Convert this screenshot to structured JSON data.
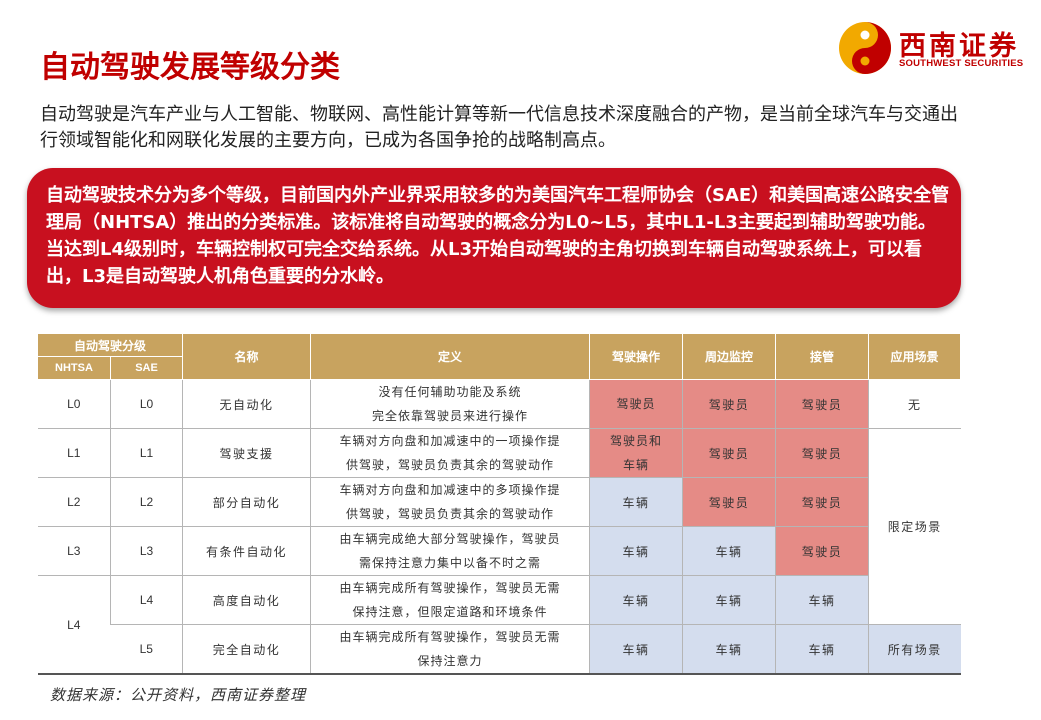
{
  "page": {
    "title": "自动驾驶发展等级分类",
    "intro": "自动驾驶是汽车产业与人工智能、物联网、高性能计算等新一代信息技术深度融合的产物，是当前全球汽车与交通出行领域智能化和网联化发展的主要方向，已成为各国争抢的战略制高点。",
    "callout": "自动驾驶技术分为多个等级，目前国内外产业界采用较多的为美国汽车工程师协会（SAE）和美国高速公路安全管理局（NHTSA）推出的分类标准。该标准将自动驾驶的概念分为L0~L5，其中L1-L3主要起到辅助驾驶功能。当达到L4级别时，车辆控制权可完全交给系统。从L3开始自动驾驶的主角切换到车辆自动驾驶系统上，可以看出，L3是自动驾驶人机角色重要的分水岭。",
    "source": "数据来源：公开资料，西南证券整理"
  },
  "logo": {
    "name_cn": "西南证券",
    "name_en": "SOUTHWEST SECURITIES",
    "colors": {
      "red": "#c00000",
      "gold": "#f2a900"
    }
  },
  "table": {
    "headers": {
      "grade": "自动驾驶分级",
      "nhtsa": "NHTSA",
      "sae": "SAE",
      "name": "名称",
      "definition": "定义",
      "operation": "驾驶操作",
      "monitoring": "周边监控",
      "takeover": "接管",
      "scenario": "应用场景"
    },
    "rows": [
      {
        "nhtsa": "L0",
        "sae": "L0",
        "name": "无自动化",
        "def_line1": "没有任何辅助功能及系统",
        "def_line2": "完全依靠驾驶员来进行操作",
        "operation_line1": "驾驶员",
        "operation_line2": "",
        "monitoring": "驾驶员",
        "takeover": "驾驶员",
        "scenario": "无"
      },
      {
        "nhtsa": "L1",
        "sae": "L1",
        "name": "驾驶支援",
        "def_line1": "车辆对方向盘和加减速中的一项操作提",
        "def_line2": "供驾驶，驾驶员负责其余的驾驶动作",
        "operation_line1": "驾驶员和",
        "operation_line2": "车辆",
        "monitoring": "驾驶员",
        "takeover": "驾驶员",
        "scenario": ""
      },
      {
        "nhtsa": "L2",
        "sae": "L2",
        "name": "部分自动化",
        "def_line1": "车辆对方向盘和加减速中的多项操作提",
        "def_line2": "供驾驶，驾驶员负责其余的驾驶动作",
        "operation_line1": "车辆",
        "operation_line2": "",
        "monitoring": "驾驶员",
        "takeover": "驾驶员",
        "scenario": "限定场景"
      },
      {
        "nhtsa": "L3",
        "sae": "L3",
        "name": "有条件自动化",
        "def_line1": "由车辆完成绝大部分驾驶操作，驾驶员",
        "def_line2": "需保持注意力集中以备不时之需",
        "operation_line1": "车辆",
        "operation_line2": "",
        "monitoring": "车辆",
        "takeover": "驾驶员",
        "scenario": ""
      },
      {
        "nhtsa": "L4",
        "sae": "L4",
        "name": "高度自动化",
        "def_line1": "由车辆完成所有驾驶操作，驾驶员无需",
        "def_line2": "保持注意，但限定道路和环境条件",
        "operation_line1": "车辆",
        "operation_line2": "",
        "monitoring": "车辆",
        "takeover": "车辆",
        "scenario": ""
      },
      {
        "nhtsa": "",
        "sae": "L5",
        "name": "完全自动化",
        "def_line1": "由车辆完成所有驾驶操作，驾驶员无需",
        "def_line2": "保持注意力",
        "operation_line1": "车辆",
        "operation_line2": "",
        "monitoring": "车辆",
        "takeover": "车辆",
        "scenario": "所有场景"
      }
    ],
    "colors": {
      "header": "#c8a35f",
      "driver_cell": "#e58b86",
      "vehicle_cell": "#d4ddee"
    }
  }
}
